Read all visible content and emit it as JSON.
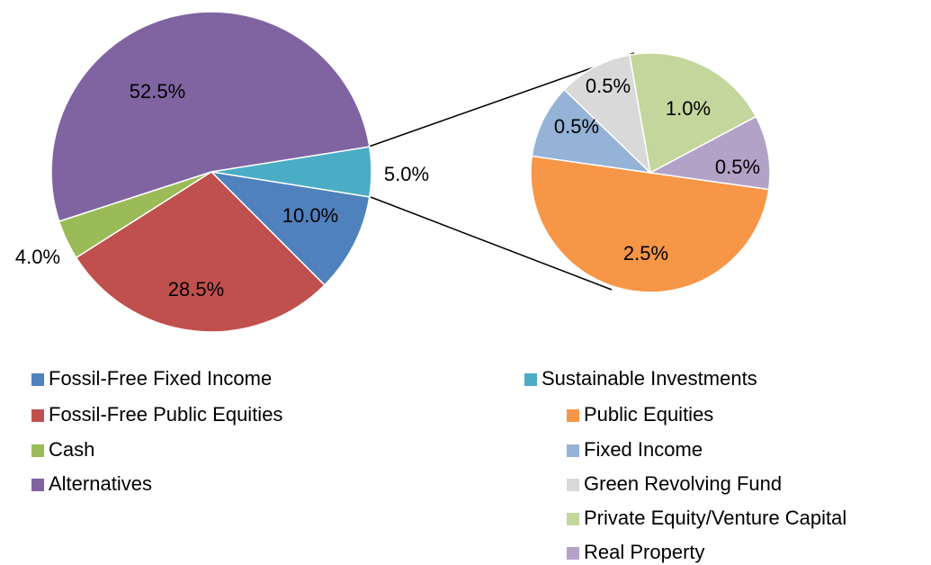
{
  "chart_data": [
    {
      "type": "pie",
      "categories": [
        "Fossil-Free Fixed Income",
        "Fossil-Free Public Equities",
        "Cash",
        "Alternatives",
        "Sustainable Investments"
      ],
      "values": [
        10.0,
        28.5,
        4.0,
        52.5,
        5.0
      ],
      "value_labels": [
        "10.0%",
        "28.5%",
        "4.0%",
        "52.5%",
        "5.0%"
      ],
      "colors": [
        "#4f81bd",
        "#c0504d",
        "#9bbb59",
        "#8064a2",
        "#4bacc6"
      ]
    },
    {
      "type": "pie",
      "categories": [
        "Public Equities",
        "Fixed Income",
        "Green Revolving Fund",
        "Private Equity/Venture Capital",
        "Real Property"
      ],
      "values": [
        2.5,
        0.5,
        0.5,
        1.0,
        0.5
      ],
      "value_labels": [
        "2.5%",
        "0.5%",
        "0.5%",
        "1.0%",
        "0.5%"
      ],
      "colors": [
        "#f79646",
        "#95b3d7",
        "#d9d9d9",
        "#c3d69b",
        "#b3a2c7"
      ]
    }
  ]
}
